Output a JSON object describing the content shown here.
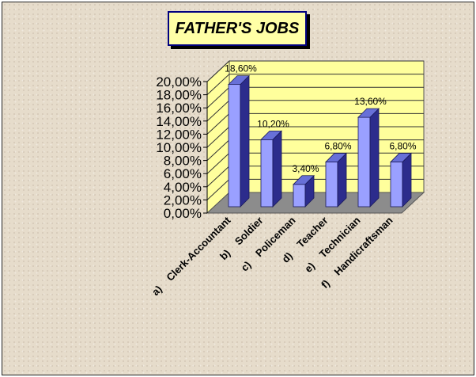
{
  "chart_data": {
    "type": "bar",
    "title": "FATHER'S JOBS",
    "categories": [
      "a)    Clerk-Accountant",
      "b)    Soldier",
      "c)    Policeman",
      "d)    Teacher",
      "e)    Technician",
      "f)    Handicraftsman"
    ],
    "values": [
      18.6,
      10.2,
      3.4,
      6.8,
      13.6,
      6.8
    ],
    "data_labels": [
      "18,60%",
      "10,20%",
      "3,40%",
      "6,80%",
      "13,60%",
      "6,80%"
    ],
    "y_ticks": [
      "0,00%",
      "2,00%",
      "4,00%",
      "6,00%",
      "8,00%",
      "10,00%",
      "12,00%",
      "14,00%",
      "16,00%",
      "18,00%",
      "20,00%"
    ],
    "ylim": [
      0,
      20
    ],
    "grid": true,
    "legend": "none",
    "colors": {
      "bar_front": "#9aa0ff",
      "bar_side": "#2c2c8c",
      "bar_top": "#6870d8",
      "wall": "#ffff9c",
      "floor": "#8c8c8c",
      "title_bg": "#ffffa6",
      "title_border": "#000080"
    }
  }
}
